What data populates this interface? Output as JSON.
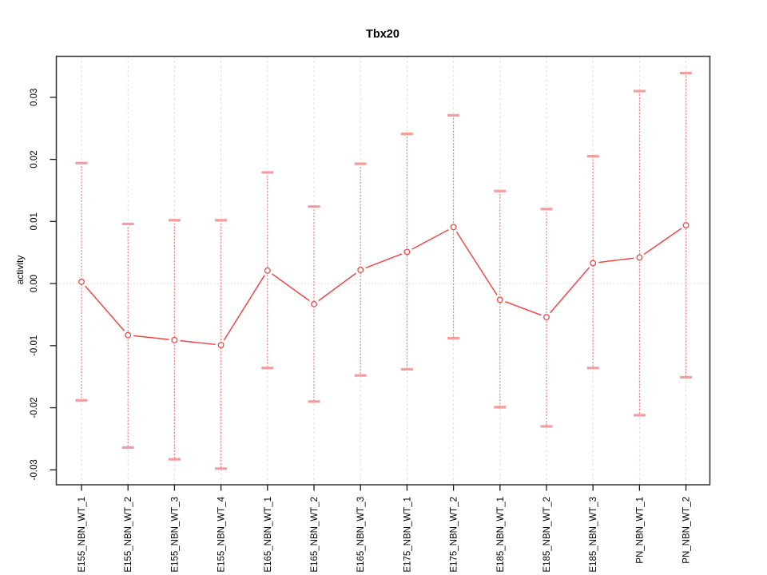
{
  "chart_data": {
    "type": "line",
    "title": "Tbx20",
    "ylabel": "activity",
    "xlabel": "",
    "categories": [
      "E155_NBN_WT_1",
      "E155_NBN_WT_2",
      "E155_NBN_WT_3",
      "E155_NBN_WT_4",
      "E165_NBN_WT_1",
      "E165_NBN_WT_2",
      "E165_NBN_WT_3",
      "E175_NBN_WT_1",
      "E175_NBN_WT_2",
      "E185_NBN_WT_1",
      "E185_NBN_WT_2",
      "E185_NBN_WT_3",
      "PN_NBN_WT_1",
      "PN_NBN_WT_2"
    ],
    "series": [
      {
        "name": "activity",
        "values": [
          0.0003,
          -0.0083,
          -0.0091,
          -0.0099,
          0.0021,
          -0.0033,
          0.0022,
          0.0051,
          0.0091,
          -0.0026,
          -0.0054,
          0.0033,
          0.0042,
          0.0094
        ],
        "error_high": [
          0.0194,
          0.0096,
          0.0102,
          0.0102,
          0.0179,
          0.0124,
          0.0193,
          0.0241,
          0.0271,
          0.0149,
          0.012,
          0.0205,
          0.031,
          0.0339
        ],
        "error_low": [
          -0.0188,
          -0.0264,
          -0.0283,
          -0.0298,
          -0.0136,
          -0.019,
          -0.0148,
          -0.0138,
          -0.0088,
          -0.0199,
          -0.023,
          -0.0136,
          -0.0212,
          -0.0151
        ]
      }
    ],
    "yticks": [
      -0.03,
      -0.02,
      -0.01,
      0,
      0.01,
      0.02,
      0.03
    ],
    "ytick_labels": [
      "-0.03",
      "-0.02",
      "-0.01",
      "0.00",
      "0.01",
      "0.02",
      "0.03"
    ],
    "ylim": [
      -0.0324,
      0.0366
    ],
    "grid": {
      "vertical_dashed": true,
      "horizontal_zero_dotted": true,
      "legend": "none"
    },
    "colors": {
      "line": "#ef4747",
      "point": "#ef4747",
      "error_line": "#f15f5f",
      "error_cap": "#f59c9c",
      "grid": "#dadada",
      "frame": "#3d3d3d",
      "tick": "#1a1a1a",
      "text": "#000000"
    }
  }
}
